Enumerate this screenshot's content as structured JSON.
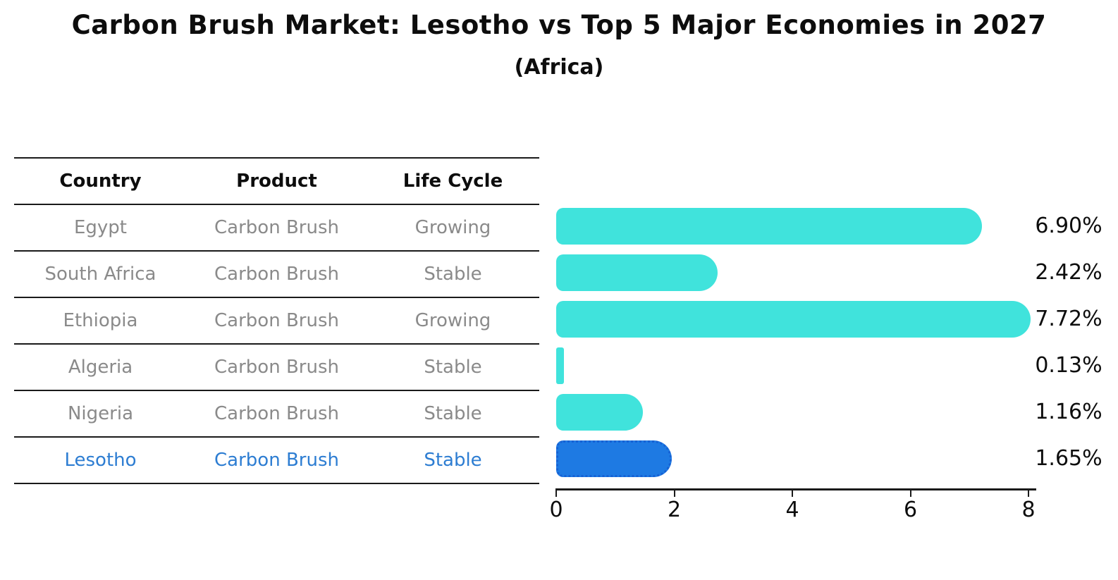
{
  "title": "Carbon Brush Market: Lesotho vs Top 5 Major Economies in 2027",
  "subtitle": "(Africa)",
  "table": {
    "headers": [
      "Country",
      "Product",
      "Life Cycle"
    ],
    "rows": [
      {
        "country": "Egypt",
        "product": "Carbon Brush",
        "life_cycle": "Growing",
        "highlighted": false
      },
      {
        "country": "South Africa",
        "product": "Carbon Brush",
        "life_cycle": "Stable",
        "highlighted": false
      },
      {
        "country": "Ethiopia",
        "product": "Carbon Brush",
        "life_cycle": "Growing",
        "highlighted": false
      },
      {
        "country": "Algeria",
        "product": "Carbon Brush",
        "life_cycle": "Stable",
        "highlighted": false
      },
      {
        "country": "Nigeria",
        "product": "Carbon Brush",
        "life_cycle": "Stable",
        "highlighted": false
      },
      {
        "country": "Lesotho",
        "product": "Carbon Brush",
        "life_cycle": "Stable",
        "highlighted": true
      }
    ]
  },
  "chart_data": {
    "type": "bar",
    "orientation": "horizontal",
    "title": "Carbon Brush Market: Lesotho vs Top 5 Major Economies in 2027",
    "subtitle": "(Africa)",
    "categories": [
      "Egypt",
      "South Africa",
      "Ethiopia",
      "Algeria",
      "Nigeria",
      "Lesotho"
    ],
    "values": [
      6.9,
      2.42,
      7.72,
      0.13,
      1.16,
      1.65
    ],
    "value_labels": [
      "6.90%",
      "2.42%",
      "7.72%",
      "0.13%",
      "1.16%",
      "1.65%"
    ],
    "xlim": [
      0,
      8
    ],
    "xticks": [
      "0",
      "2",
      "4",
      "6",
      "8"
    ],
    "grid": false,
    "legend": false,
    "highlight_index": 5
  },
  "colors": {
    "bar": "#40E3DC",
    "highlight_bar": "#1E7AE3",
    "highlight_border": "#1661D4",
    "highlight_text": "#2D7DD2",
    "text": "#0D0D0D",
    "muted_text": "#8A8A8A",
    "line": "#1A1A1A",
    "background": "#FFFFFF"
  }
}
